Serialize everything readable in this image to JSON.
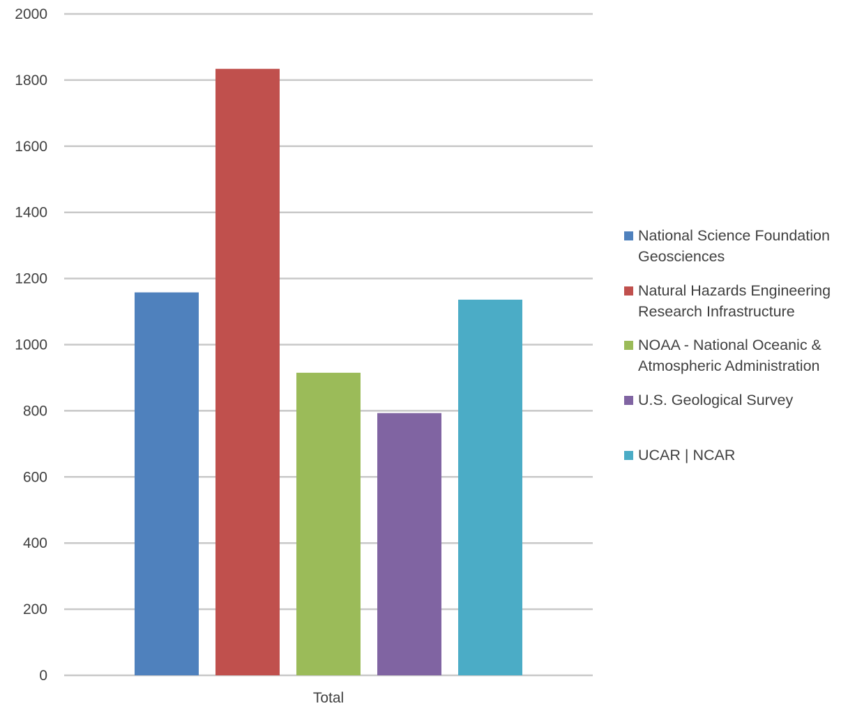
{
  "chart_data": {
    "type": "bar",
    "categories": [
      "Total"
    ],
    "series": [
      {
        "name": "National Science Foundation Geosciences",
        "values": [
          1158
        ],
        "color": "#4F81BD"
      },
      {
        "name": "Natural Hazards Engineering Research Infrastructure",
        "values": [
          1834
        ],
        "color": "#C0504D"
      },
      {
        "name": "NOAA - National Oceanic & Atmospheric Administration",
        "values": [
          915
        ],
        "color": "#9BBB59"
      },
      {
        "name": "U.S. Geological Survey",
        "values": [
          793
        ],
        "color": "#8064A2"
      },
      {
        "name": "UCAR | NCAR",
        "values": [
          1136
        ],
        "color": "#4BACC6"
      }
    ],
    "yticks": [
      "0",
      "200",
      "400",
      "600",
      "800",
      "1000",
      "1200",
      "1400",
      "1600",
      "1800",
      "2000"
    ],
    "ylim": [
      0,
      2000
    ],
    "grid": true,
    "legend_position": "right",
    "title": "",
    "xlabel": "",
    "ylabel": ""
  },
  "legend": {
    "items": [
      {
        "label": "National Science Foundation\nGeosciences",
        "color": "#4F81BD"
      },
      {
        "label": "Natural Hazards Engineering\nResearch Infrastructure",
        "color": "#C0504D"
      },
      {
        "label": "NOAA - National Oceanic &\nAtmospheric Administration",
        "color": "#9BBB59"
      },
      {
        "label": "U.S. Geological Survey",
        "color": "#8064A2"
      },
      {
        "label": "UCAR | NCAR",
        "color": "#4BACC6"
      }
    ]
  }
}
